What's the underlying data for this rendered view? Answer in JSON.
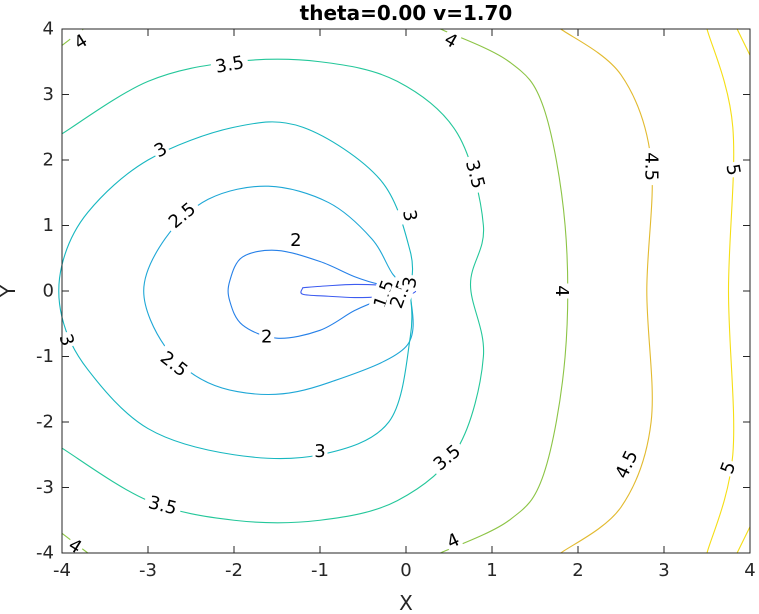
{
  "chart_data": {
    "type": "contour",
    "title": "theta=0.00 v=1.70",
    "xlabel": "X",
    "ylabel": "Y",
    "xlim": [
      -4,
      4
    ],
    "ylim": [
      -4,
      4
    ],
    "xticks": [
      "-4",
      "-3",
      "-2",
      "-1",
      "0",
      "1",
      "2",
      "3",
      "4"
    ],
    "yticks": [
      "-4",
      "-3",
      "-2",
      "-1",
      "0",
      "1",
      "2",
      "3",
      "4"
    ],
    "grid": false,
    "colormap": "parula",
    "levels": [
      {
        "value": 1.5,
        "color": "#3d5cf0",
        "curves": [
          [
            [
              -1.2,
              0.05
            ],
            [
              -0.9,
              0.08
            ],
            [
              -0.6,
              0.1
            ],
            [
              -0.3,
              0.09
            ],
            [
              0,
              0.06
            ],
            [
              0.1,
              0.02
            ],
            [
              0.1,
              -0.02
            ],
            [
              0,
              -0.06
            ],
            [
              -0.3,
              -0.09
            ],
            [
              -0.6,
              -0.1
            ],
            [
              -0.9,
              -0.08
            ],
            [
              -1.2,
              -0.05
            ],
            [
              -1.2,
              0.05
            ]
          ]
        ]
      },
      {
        "value": 2,
        "color": "#2680e8",
        "curves": [
          [
            [
              0.05,
              0.04
            ],
            [
              -0.3,
              0.1
            ],
            [
              -0.6,
              0.22
            ],
            [
              -1.0,
              0.45
            ],
            [
              -1.5,
              0.62
            ],
            [
              -1.9,
              0.52
            ],
            [
              -2.05,
              0.15
            ],
            [
              -2.05,
              -0.15
            ],
            [
              -1.9,
              -0.52
            ],
            [
              -1.5,
              -0.72
            ],
            [
              -1.0,
              -0.6
            ],
            [
              -0.6,
              -0.3
            ],
            [
              -0.3,
              -0.14
            ],
            [
              0.05,
              -0.04
            ]
          ]
        ]
      },
      {
        "value": 2.5,
        "color": "#1ea7d6",
        "curves": [
          [
            [
              0.05,
              0.03
            ],
            [
              -0.15,
              0.25
            ],
            [
              -0.4,
              0.8
            ],
            [
              -0.9,
              1.35
            ],
            [
              -1.6,
              1.6
            ],
            [
              -2.3,
              1.4
            ],
            [
              -2.8,
              0.8
            ],
            [
              -3.05,
              0
            ],
            [
              -2.8,
              -0.85
            ],
            [
              -2.3,
              -1.4
            ],
            [
              -1.6,
              -1.58
            ],
            [
              -0.9,
              -1.4
            ],
            [
              0.0,
              -0.85
            ],
            [
              0.05,
              -0.03
            ]
          ]
        ]
      },
      {
        "value": 3,
        "color": "#17b7c0",
        "curves": [
          [
            [
              0.05,
              0.01
            ],
            [
              0.05,
              0.6
            ],
            [
              -0.3,
              1.7
            ],
            [
              -1.2,
              2.5
            ],
            [
              -2.0,
              2.5
            ],
            [
              -3.0,
              2.0
            ],
            [
              -3.7,
              1.2
            ],
            [
              -4.0,
              0.4
            ],
            [
              -4.0,
              -0.4
            ],
            [
              -3.7,
              -1.2
            ],
            [
              -3.0,
              -2.1
            ],
            [
              -2.0,
              -2.5
            ],
            [
              -1.0,
              -2.5
            ],
            [
              -0.2,
              -2.0
            ],
            [
              0.05,
              -0.7
            ],
            [
              0.05,
              -0.01
            ]
          ]
        ]
      },
      {
        "value": 3.5,
        "color": "#24c79a",
        "curves": [
          [
            [
              -4.0,
              2.4
            ],
            [
              -3.0,
              3.2
            ],
            [
              -2.0,
              3.5
            ],
            [
              -1.0,
              3.5
            ],
            [
              -0.1,
              3.2
            ],
            [
              0.6,
              2.4
            ],
            [
              0.9,
              1.0
            ],
            [
              0.75,
              0.1
            ],
            [
              0.9,
              -1.0
            ],
            [
              0.6,
              -2.4
            ],
            [
              -0.1,
              -3.2
            ],
            [
              -1.0,
              -3.5
            ],
            [
              -2.0,
              -3.5
            ],
            [
              -3.0,
              -3.2
            ],
            [
              -4.0,
              -2.4
            ]
          ]
        ]
      },
      {
        "value": 4,
        "color": "#8cc445",
        "curves": [
          [
            [
              -4.0,
              3.75
            ],
            [
              -3.75,
              4.0
            ]
          ],
          [
            [
              0.4,
              4.0
            ],
            [
              1.2,
              3.5
            ],
            [
              1.6,
              2.8
            ],
            [
              1.85,
              1.0
            ],
            [
              1.85,
              -1.0
            ],
            [
              1.6,
              -2.8
            ],
            [
              1.2,
              -3.5
            ],
            [
              0.4,
              -4.0
            ]
          ],
          [
            [
              -4.0,
              -3.7
            ],
            [
              -3.7,
              -4.0
            ]
          ]
        ]
      },
      {
        "value": 4.5,
        "color": "#e2ba2f",
        "curves": [
          [
            [
              1.8,
              4.0
            ],
            [
              2.5,
              3.3
            ],
            [
              2.85,
              2.0
            ],
            [
              2.8,
              0
            ],
            [
              2.85,
              -2.0
            ],
            [
              2.5,
              -3.3
            ],
            [
              1.8,
              -4.0
            ]
          ]
        ]
      },
      {
        "value": 5,
        "color": "#f5de14",
        "curves": [
          [
            [
              3.5,
              4.0
            ],
            [
              3.8,
              2.5
            ],
            [
              3.75,
              0
            ],
            [
              3.8,
              -2.5
            ],
            [
              3.5,
              -4.0
            ]
          ],
          [
            [
              3.85,
              4.0
            ],
            [
              4.0,
              3.6
            ]
          ],
          [
            [
              3.85,
              -4.0
            ],
            [
              4.0,
              -3.6
            ]
          ]
        ]
      }
    ],
    "labels": [
      {
        "text": "4",
        "x": -3.78,
        "y": 3.8,
        "angle": -32
      },
      {
        "text": "3.5",
        "x": -2.05,
        "y": 3.45,
        "angle": -10
      },
      {
        "text": "3",
        "x": -2.85,
        "y": 2.15,
        "angle": -27
      },
      {
        "text": "2.5",
        "x": -2.6,
        "y": 1.15,
        "angle": -40
      },
      {
        "text": "2",
        "x": -1.28,
        "y": 0.77,
        "angle": 0
      },
      {
        "text": "1.5",
        "x": -0.25,
        "y": -0.05,
        "angle": -70
      },
      {
        "text": "2.5",
        "x": -0.06,
        "y": -0.05,
        "angle": -70
      },
      {
        "text": "3",
        "x": 0.05,
        "y": 0.13,
        "angle": -80
      },
      {
        "text": "2",
        "x": -1.62,
        "y": -0.7,
        "angle": 0
      },
      {
        "text": "2.5",
        "x": -2.7,
        "y": -1.12,
        "angle": 38
      },
      {
        "text": "3",
        "x": -3.95,
        "y": -0.75,
        "angle": 72
      },
      {
        "text": "3",
        "x": -1.0,
        "y": -2.45,
        "angle": 0
      },
      {
        "text": "3.5",
        "x": -2.83,
        "y": -3.28,
        "angle": 14
      },
      {
        "text": "4",
        "x": -3.85,
        "y": -3.9,
        "angle": 32
      },
      {
        "text": "4",
        "x": 0.52,
        "y": 3.82,
        "angle": 30
      },
      {
        "text": "3.5",
        "x": 0.8,
        "y": 1.78,
        "angle": 75
      },
      {
        "text": "3",
        "x": 0.04,
        "y": 1.15,
        "angle": 80
      },
      {
        "text": "3.5",
        "x": 0.48,
        "y": -2.55,
        "angle": -40
      },
      {
        "text": "4",
        "x": 1.81,
        "y": 0,
        "angle": 90
      },
      {
        "text": "4",
        "x": 0.55,
        "y": -3.82,
        "angle": -25
      },
      {
        "text": "4.5",
        "x": 2.85,
        "y": 1.9,
        "angle": 90
      },
      {
        "text": "4.5",
        "x": 2.57,
        "y": -2.65,
        "angle": -65
      },
      {
        "text": "5",
        "x": 3.8,
        "y": 1.85,
        "angle": 80
      },
      {
        "text": "5",
        "x": 3.75,
        "y": -2.7,
        "angle": -70
      }
    ]
  }
}
